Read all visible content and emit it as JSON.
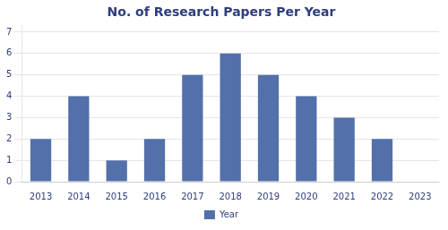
{
  "chart_data": {
    "type": "bar",
    "title": "No. of Research Papers Per Year",
    "categories": [
      "2013",
      "2014",
      "2015",
      "2016",
      "2017",
      "2018",
      "2019",
      "2020",
      "2021",
      "2022",
      "2023"
    ],
    "series": [
      {
        "name": "Year",
        "color": "#5470AA",
        "values": [
          2,
          4,
          1,
          2,
          5,
          6,
          5,
          4,
          3,
          2,
          0
        ]
      }
    ],
    "ylim": [
      0,
      7.3
    ],
    "yticks": [
      0,
      1,
      2,
      3,
      4,
      5,
      6,
      7
    ],
    "grid": true,
    "legend": "bottom"
  }
}
